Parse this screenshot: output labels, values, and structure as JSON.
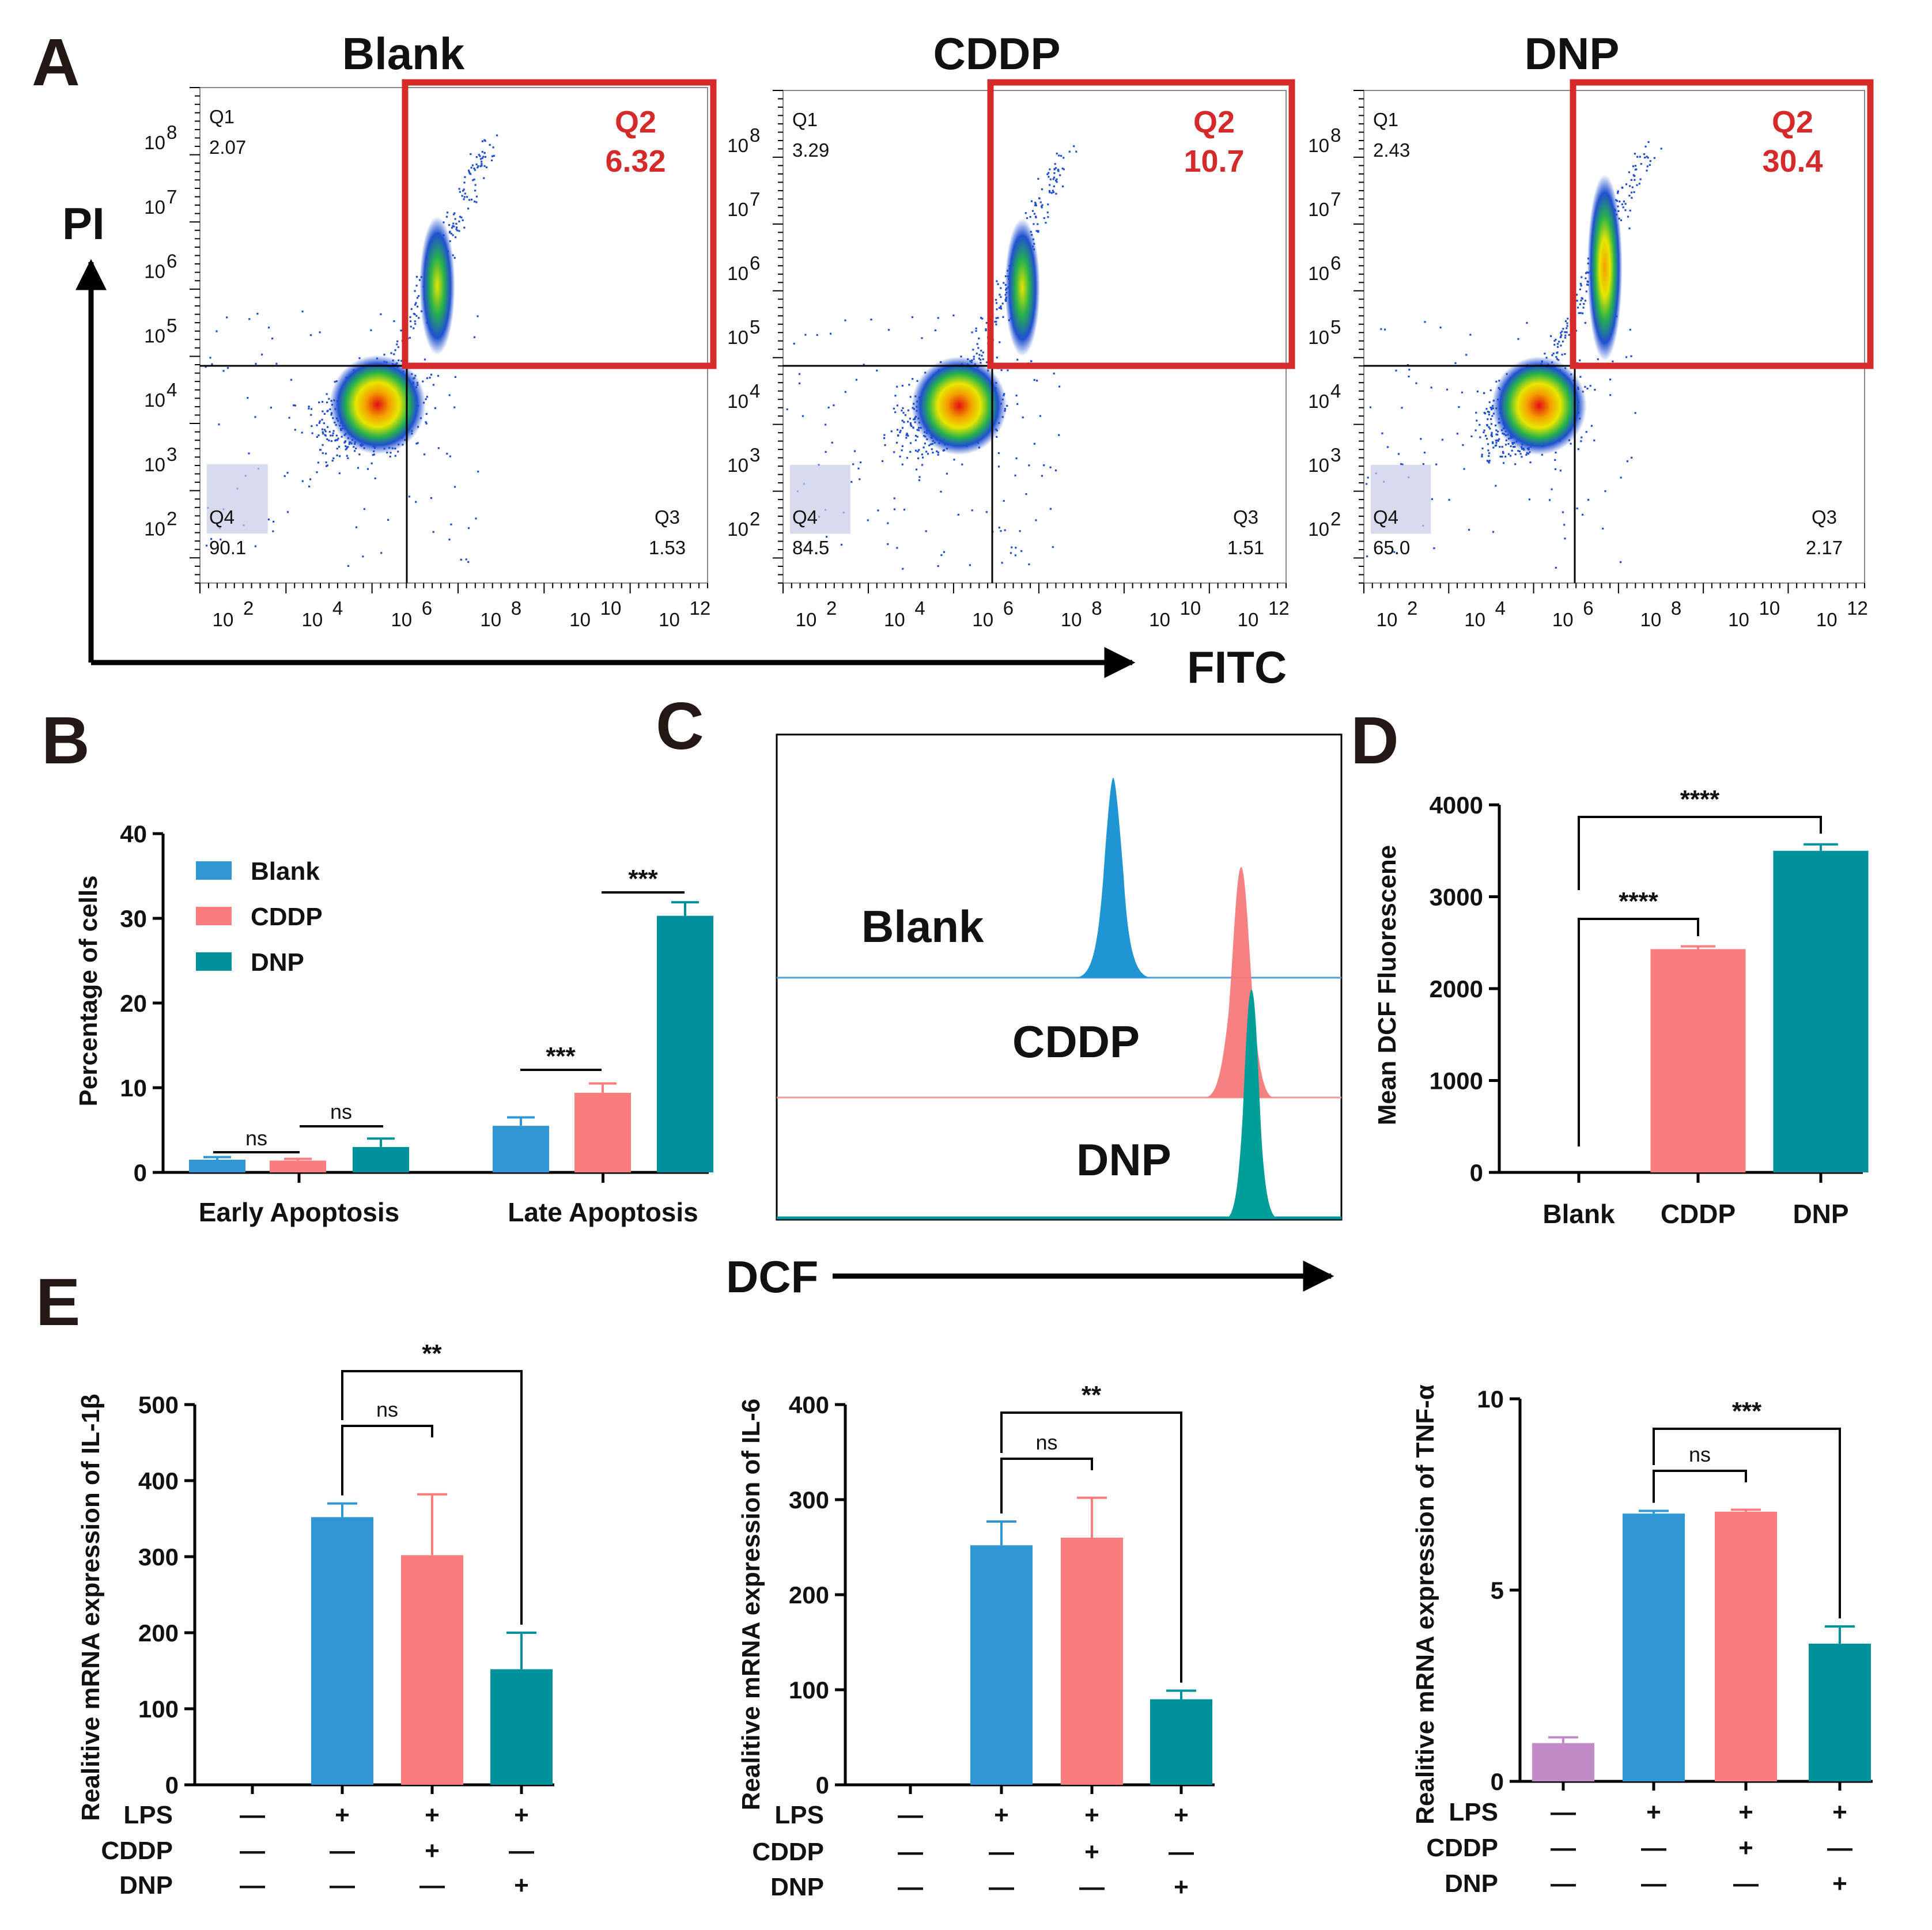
{
  "panel_letters": [
    "A",
    "B",
    "C",
    "D",
    "E"
  ],
  "colors": {
    "blank": "#3197d4",
    "cddp": "#fb7d7d",
    "dnp": "#00929c",
    "control": "#c28ac7",
    "gate_red": "#d42a2a"
  },
  "chart_data": [
    {
      "id": "A",
      "type": "scatter",
      "description_title": "Annexin V-FITC / PI flow cytometry",
      "x_arrow_label": "FITC",
      "y_arrow_label": "PI",
      "tick_labels": [
        "10",
        "2",
        "4",
        "6",
        "8",
        "10",
        "12"
      ],
      "plots": [
        {
          "title": "Blank",
          "Q1": "Q1",
          "Q1_val": "2.07",
          "Q2": "Q2",
          "Q2_val": "6.32",
          "Q3": "Q3",
          "Q3_val": "1.53",
          "Q4": "Q4",
          "Q4_val": "90.1"
        },
        {
          "title": "CDDP",
          "Q1": "Q1",
          "Q1_val": "3.29",
          "Q2": "Q2",
          "Q2_val": "10.7",
          "Q3": "Q3",
          "Q3_val": "1.51",
          "Q4": "Q4",
          "Q4_val": "84.5"
        },
        {
          "title": "DNP",
          "Q1": "Q1",
          "Q1_val": "2.43",
          "Q2": "Q2",
          "Q2_val": "30.4",
          "Q3": "Q3",
          "Q3_val": "2.17",
          "Q4": "Q4",
          "Q4_val": "65.0"
        }
      ],
      "x_tick_exponents": [
        "2",
        "4",
        "6",
        "8",
        "10",
        "12"
      ],
      "y_tick_exponents": [
        "8",
        "7",
        "6",
        "5",
        "4",
        "3",
        "2"
      ]
    },
    {
      "id": "B",
      "type": "bar",
      "ylabel": "Percentage of cells",
      "ylim": [
        0,
        40
      ],
      "yticks": [
        "0",
        "10",
        "20",
        "30",
        "40"
      ],
      "categories": [
        "Early Apoptosis",
        "Late Apoptosis"
      ],
      "series": [
        {
          "name": "Blank",
          "values": [
            1.5,
            5.5
          ],
          "errors": [
            0.3,
            1.0
          ]
        },
        {
          "name": "CDDP",
          "values": [
            1.4,
            9.4
          ],
          "errors": [
            0.2,
            1.1
          ]
        },
        {
          "name": "DNP",
          "values": [
            3.0,
            30.3
          ],
          "errors": [
            1.0,
            1.6
          ]
        }
      ],
      "significance": [
        "ns",
        "ns",
        "***",
        "***"
      ]
    },
    {
      "id": "C",
      "type": "histogram",
      "x_arrow_label": "DCF",
      "traces": [
        {
          "name": "Blank",
          "peak_position": 0.59
        },
        {
          "name": "CDDP",
          "peak_position": 0.83
        },
        {
          "name": "DNP",
          "peak_position": 0.85
        }
      ]
    },
    {
      "id": "D",
      "type": "bar",
      "ylabel": "Mean DCF Fluorescene",
      "ylim": [
        0,
        4000
      ],
      "yticks": [
        "0",
        "1000",
        "2000",
        "3000",
        "4000"
      ],
      "categories": [
        "Blank",
        "CDDP",
        "DNP"
      ],
      "values": [
        0,
        2430,
        3500
      ],
      "errors": [
        0,
        30,
        70
      ],
      "significance": [
        "****",
        "****"
      ]
    },
    {
      "id": "E1",
      "type": "bar",
      "ylabel": "Realitive mRNA expression of IL-1β",
      "ylim": [
        0,
        500
      ],
      "yticks": [
        "0",
        "100",
        "200",
        "300",
        "400",
        "500"
      ],
      "values": [
        0,
        352,
        302,
        152
      ],
      "errors": [
        0,
        18,
        80,
        48
      ],
      "significance": [
        "ns",
        "**"
      ]
    },
    {
      "id": "E2",
      "type": "bar",
      "ylabel": "Realitive mRNA expression of  IL-6",
      "ylim": [
        0,
        400
      ],
      "yticks": [
        "0",
        "100",
        "200",
        "300",
        "400"
      ],
      "values": [
        0,
        252,
        260,
        90
      ],
      "errors": [
        0,
        25,
        42,
        9
      ],
      "significance": [
        "ns",
        "**"
      ]
    },
    {
      "id": "E3",
      "type": "bar",
      "ylabel": "Realitive mRNA expression of  TNF-α",
      "ylim": [
        0,
        10
      ],
      "yticks": [
        "0",
        "5",
        "10"
      ],
      "values": [
        1.0,
        7.0,
        7.05,
        3.6
      ],
      "errors": [
        0.15,
        0.07,
        0.05,
        0.45
      ],
      "significance": [
        "ns",
        "***"
      ]
    }
  ],
  "treatment_rows": [
    {
      "label": "LPS",
      "symbols": [
        "—",
        "+",
        "+",
        "+"
      ]
    },
    {
      "label": "CDDP",
      "symbols": [
        "—",
        "—",
        "+",
        "—"
      ]
    },
    {
      "label": "DNP",
      "symbols": [
        "—",
        "—",
        "—",
        "+"
      ]
    }
  ]
}
